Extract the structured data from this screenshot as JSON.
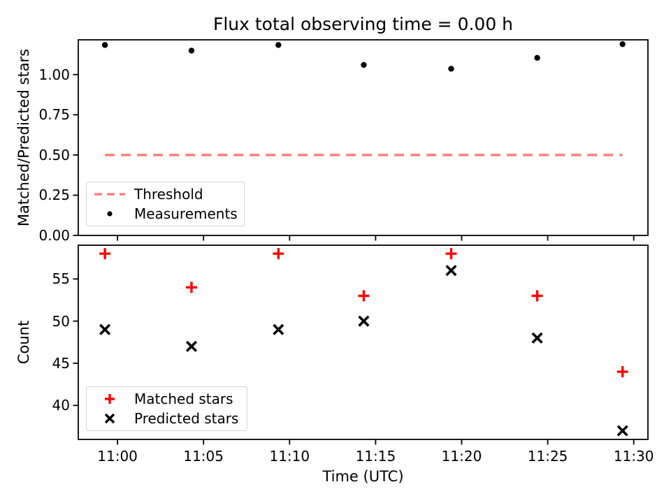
{
  "chart_data": [
    {
      "type": "scatter",
      "title": "Flux total observing time = 0.00 h",
      "xlabel": "",
      "ylabel": "Matched/Predicted stars",
      "x_minutes_after_11_00_utc": [
        -0.73,
        4.3,
        9.35,
        14.31,
        19.39,
        24.39,
        29.35
      ],
      "series": [
        {
          "name": "Threshold",
          "kind": "hline",
          "y": 0.5,
          "color": "#ff7f7f",
          "linestyle": "dashed",
          "span_x_minutes": [
            -0.73,
            29.35
          ]
        },
        {
          "name": "Measurements",
          "kind": "scatter",
          "marker": "dot",
          "color": "#000000",
          "y": [
            1.184,
            1.149,
            1.184,
            1.06,
            1.036,
            1.104,
            1.189
          ]
        }
      ],
      "yticks": [
        "0.00",
        "0.25",
        "0.50",
        "0.75",
        "1.00"
      ],
      "ylim": [
        0,
        1.216
      ],
      "legend": {
        "items": [
          "Threshold",
          "Measurements"
        ],
        "position": "lower left"
      },
      "grid": false
    },
    {
      "type": "scatter",
      "title": "",
      "xlabel": "Time (UTC)",
      "ylabel": "Count",
      "x_minutes_after_11_00_utc": [
        -0.73,
        4.3,
        9.35,
        14.31,
        19.39,
        24.39,
        29.35
      ],
      "xticks": {
        "minutes": [
          0,
          5,
          10,
          15,
          20,
          25,
          30
        ],
        "labels": [
          "11:00",
          "11:05",
          "11:10",
          "11:15",
          "11:20",
          "11:25",
          "11:30"
        ]
      },
      "series": [
        {
          "name": "Matched stars",
          "kind": "scatter",
          "marker": "plus",
          "color": "#ff0000",
          "y": [
            58,
            54,
            58,
            53,
            58,
            53,
            44
          ]
        },
        {
          "name": "Predicted stars",
          "kind": "scatter",
          "marker": "x",
          "color": "#000000",
          "y": [
            49,
            47,
            49,
            50,
            56,
            48,
            37
          ]
        }
      ],
      "yticks": [
        "40",
        "45",
        "50",
        "55"
      ],
      "ylim": [
        35.97,
        59.0
      ],
      "legend": {
        "items": [
          "Matched stars",
          "Predicted stars"
        ],
        "position": "lower left"
      },
      "grid": false
    }
  ]
}
